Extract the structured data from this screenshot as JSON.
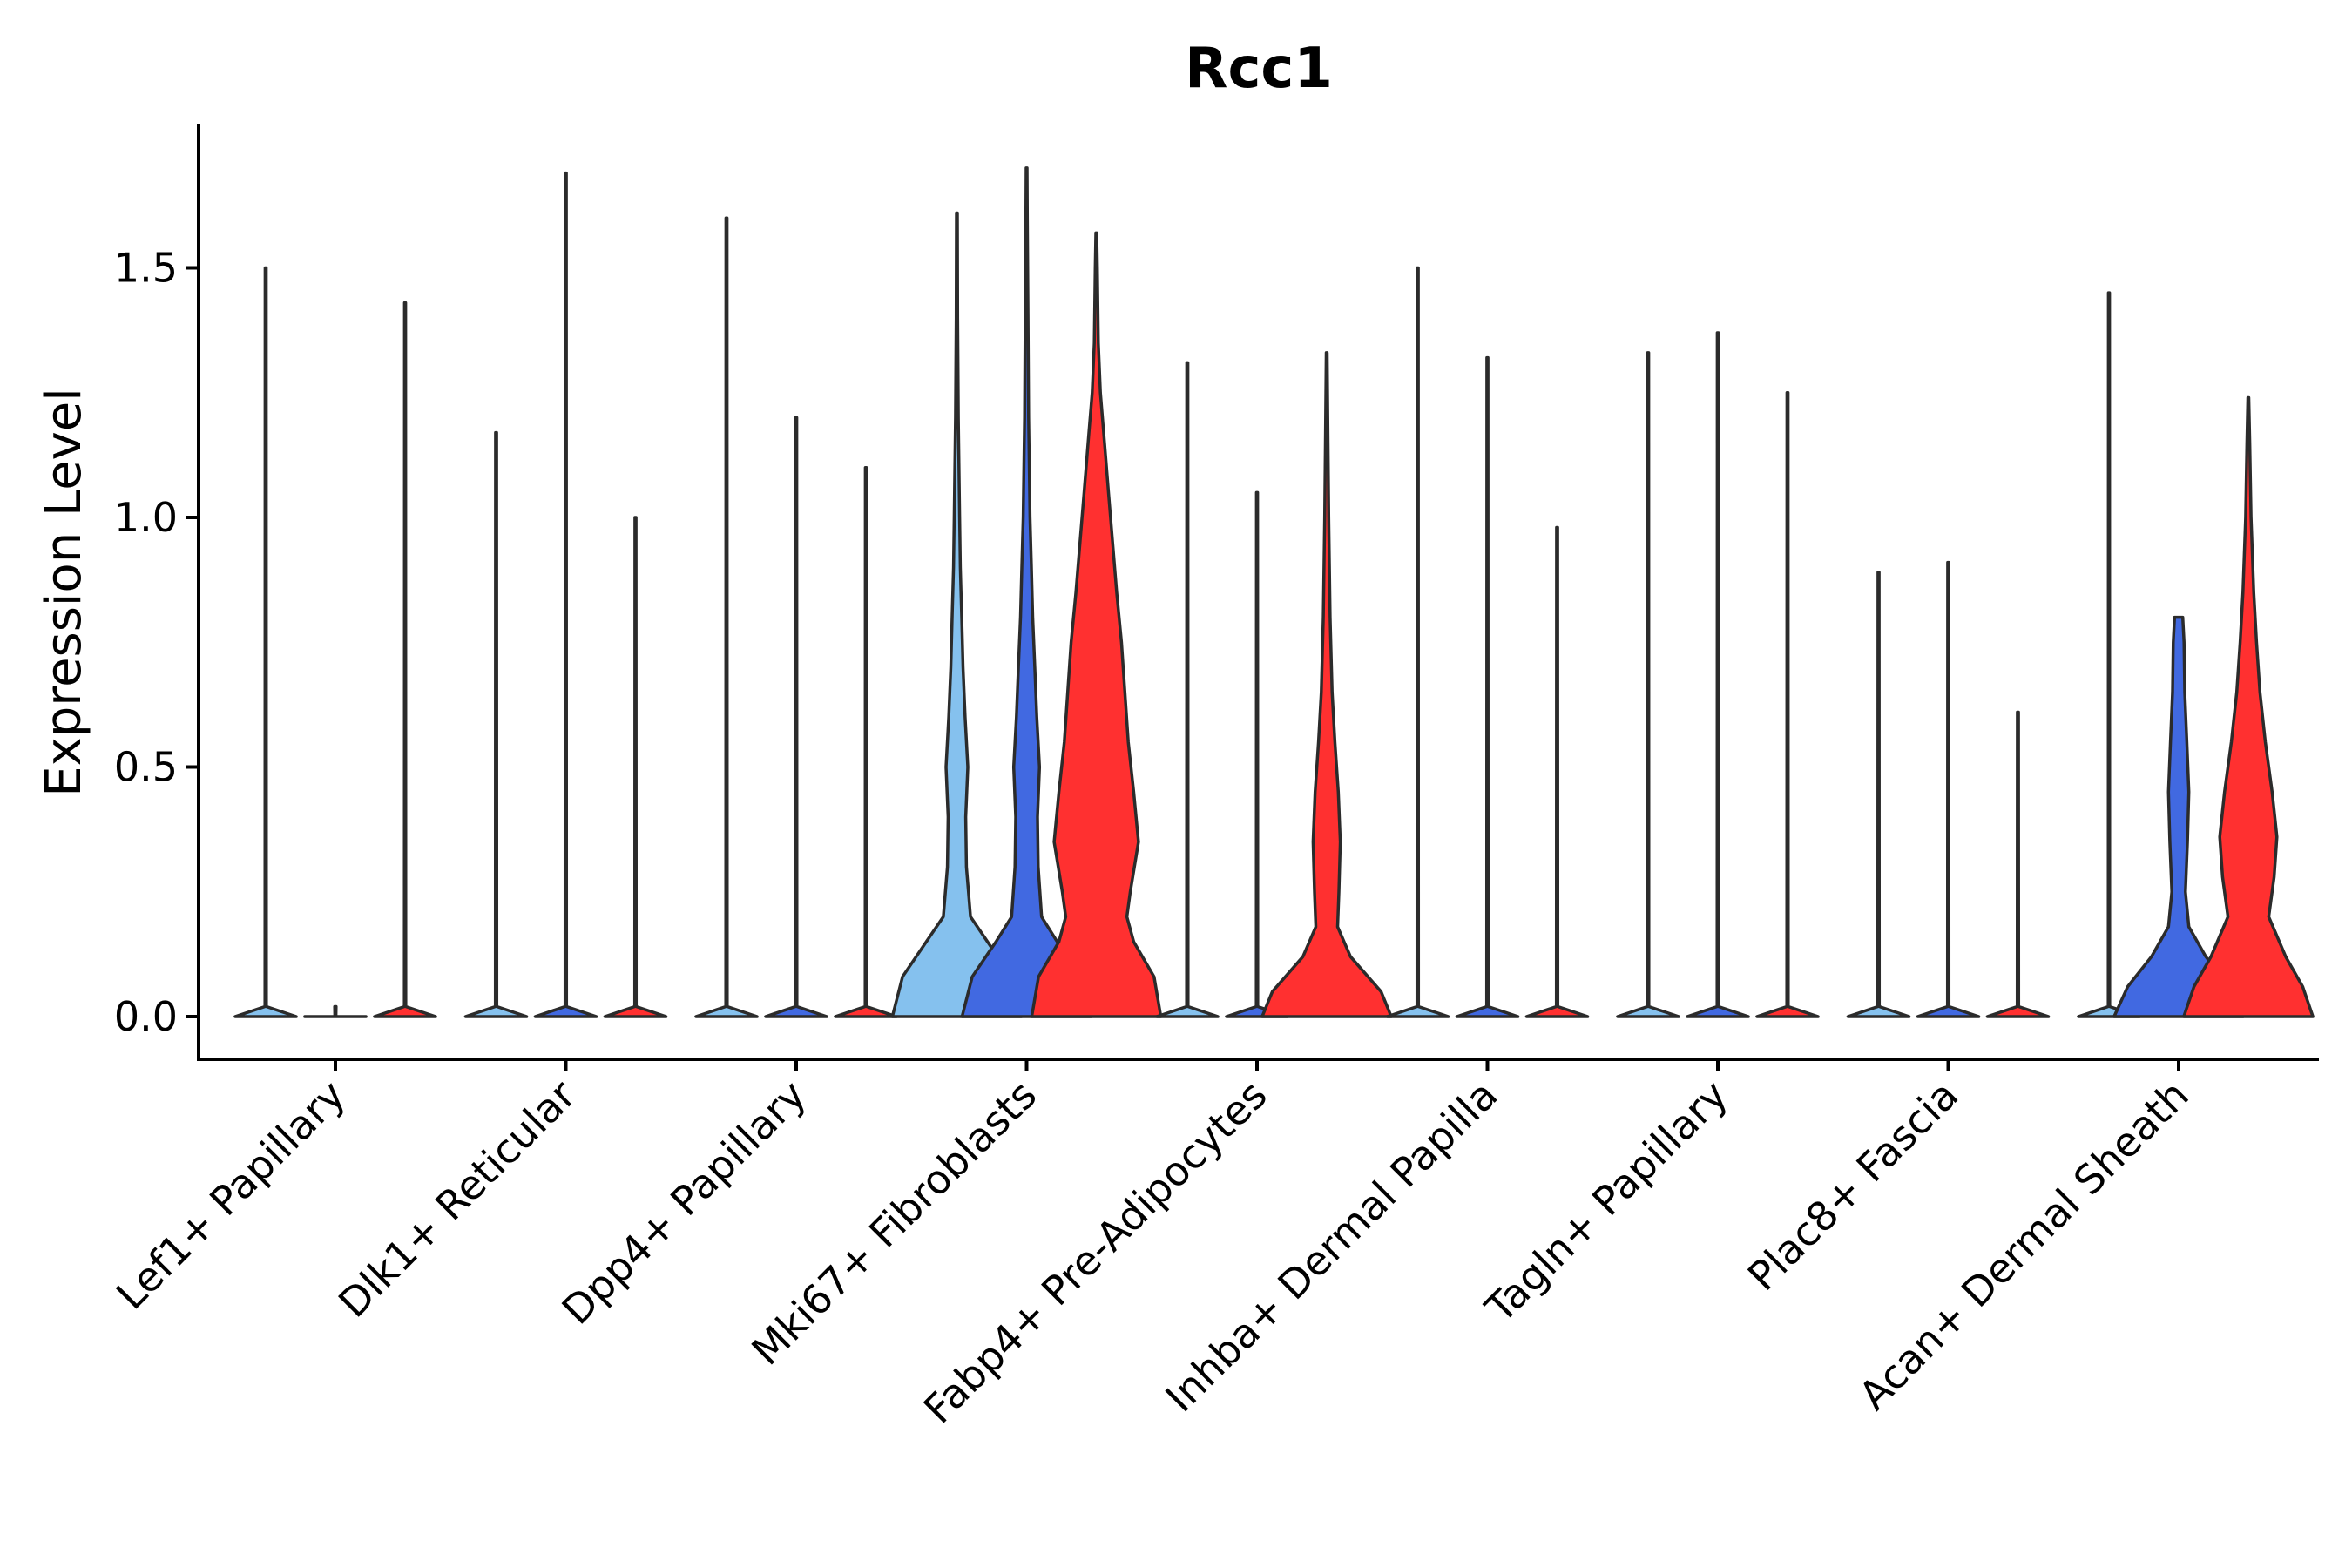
{
  "chart_data": {
    "type": "violin",
    "title": "Rcc1",
    "xlabel": "",
    "ylabel": "Expression Level",
    "ylim": [
      -0.08,
      1.78
    ],
    "yticks": [
      "0.0",
      "0.5",
      "1.0",
      "1.5"
    ],
    "ytick_values": [
      0,
      0.5,
      1.0,
      1.5
    ],
    "categories": [
      "Lef1+ Papillary",
      "Dlk1+ Reticular",
      "Dpp4+ Papillary",
      "Mki67+ Fibroblasts",
      "Fabp4+ Pre-Adipocytes",
      "Inhba+ Dermal Papilla",
      "Tagln+ Papillary",
      "Plac8+ Fascia",
      "Acan+ Dermal Sheath"
    ],
    "groups": [
      {
        "name": "group1",
        "color": "#85C1EE"
      },
      {
        "name": "group2",
        "color": "#4169E1"
      },
      {
        "name": "group3",
        "color": "#FF3030"
      }
    ],
    "violins": [
      {
        "category": 0,
        "group": 0,
        "max": 1.5,
        "profile": []
      },
      {
        "category": 0,
        "group": 1,
        "max": 0.0,
        "profile": []
      },
      {
        "category": 0,
        "group": 2,
        "max": 1.43,
        "profile": []
      },
      {
        "category": 1,
        "group": 0,
        "max": 1.17,
        "profile": []
      },
      {
        "category": 1,
        "group": 1,
        "max": 1.69,
        "profile": []
      },
      {
        "category": 1,
        "group": 2,
        "max": 1.0,
        "profile": []
      },
      {
        "category": 2,
        "group": 0,
        "max": 1.6,
        "profile": []
      },
      {
        "category": 2,
        "group": 1,
        "max": 1.2,
        "profile": []
      },
      {
        "category": 2,
        "group": 2,
        "max": 1.1,
        "profile": []
      },
      {
        "category": 3,
        "group": 0,
        "max": 1.61,
        "profile": [
          [
            0,
            0.95
          ],
          [
            0.08,
            0.8
          ],
          [
            0.15,
            0.45
          ],
          [
            0.2,
            0.2
          ],
          [
            0.3,
            0.14
          ],
          [
            0.4,
            0.13
          ],
          [
            0.5,
            0.16
          ],
          [
            0.6,
            0.12
          ],
          [
            0.7,
            0.09
          ],
          [
            0.8,
            0.07
          ],
          [
            0.9,
            0.05
          ],
          [
            1.0,
            0.04
          ],
          [
            1.2,
            0.02
          ],
          [
            1.4,
            0.01
          ]
        ]
      },
      {
        "category": 3,
        "group": 1,
        "max": 1.7,
        "profile": [
          [
            0,
            0.95
          ],
          [
            0.08,
            0.8
          ],
          [
            0.15,
            0.45
          ],
          [
            0.2,
            0.22
          ],
          [
            0.3,
            0.17
          ],
          [
            0.4,
            0.16
          ],
          [
            0.5,
            0.19
          ],
          [
            0.6,
            0.15
          ],
          [
            0.7,
            0.12
          ],
          [
            0.8,
            0.09
          ],
          [
            0.9,
            0.07
          ],
          [
            1.0,
            0.05
          ],
          [
            1.2,
            0.03
          ],
          [
            1.4,
            0.02
          ],
          [
            1.6,
            0.01
          ]
        ]
      },
      {
        "category": 3,
        "group": 2,
        "max": 1.57,
        "profile": [
          [
            0,
            0.95
          ],
          [
            0.08,
            0.85
          ],
          [
            0.15,
            0.55
          ],
          [
            0.2,
            0.45
          ],
          [
            0.25,
            0.5
          ],
          [
            0.35,
            0.62
          ],
          [
            0.45,
            0.55
          ],
          [
            0.55,
            0.47
          ],
          [
            0.65,
            0.42
          ],
          [
            0.75,
            0.37
          ],
          [
            0.85,
            0.3
          ],
          [
            0.95,
            0.24
          ],
          [
            1.05,
            0.18
          ],
          [
            1.15,
            0.12
          ],
          [
            1.25,
            0.06
          ],
          [
            1.35,
            0.03
          ],
          [
            1.5,
            0.015
          ]
        ]
      },
      {
        "category": 4,
        "group": 0,
        "max": 1.31,
        "profile": []
      },
      {
        "category": 4,
        "group": 1,
        "max": 1.05,
        "profile": []
      },
      {
        "category": 4,
        "group": 2,
        "max": 1.33,
        "profile": [
          [
            0,
            0.95
          ],
          [
            0.05,
            0.8
          ],
          [
            0.12,
            0.35
          ],
          [
            0.18,
            0.16
          ],
          [
            0.25,
            0.18
          ],
          [
            0.35,
            0.2
          ],
          [
            0.45,
            0.17
          ],
          [
            0.55,
            0.12
          ],
          [
            0.65,
            0.08
          ],
          [
            0.8,
            0.05
          ],
          [
            1.0,
            0.03
          ],
          [
            1.2,
            0.015
          ]
        ]
      },
      {
        "category": 5,
        "group": 0,
        "max": 1.5,
        "profile": []
      },
      {
        "category": 5,
        "group": 1,
        "max": 1.32,
        "profile": []
      },
      {
        "category": 5,
        "group": 2,
        "max": 0.98,
        "profile": []
      },
      {
        "category": 6,
        "group": 0,
        "max": 1.33,
        "profile": []
      },
      {
        "category": 6,
        "group": 1,
        "max": 1.37,
        "profile": []
      },
      {
        "category": 6,
        "group": 2,
        "max": 1.25,
        "profile": []
      },
      {
        "category": 7,
        "group": 0,
        "max": 0.89,
        "profile": []
      },
      {
        "category": 7,
        "group": 1,
        "max": 0.91,
        "profile": []
      },
      {
        "category": 7,
        "group": 2,
        "max": 0.61,
        "profile": []
      },
      {
        "category": 8,
        "group": 0,
        "max": 1.45,
        "profile": []
      },
      {
        "category": 8,
        "group": 1,
        "max": 0.8,
        "profile": [
          [
            0,
            0.95
          ],
          [
            0.06,
            0.75
          ],
          [
            0.12,
            0.4
          ],
          [
            0.18,
            0.15
          ],
          [
            0.25,
            0.1
          ],
          [
            0.35,
            0.13
          ],
          [
            0.45,
            0.15
          ],
          [
            0.55,
            0.12
          ],
          [
            0.65,
            0.09
          ],
          [
            0.75,
            0.08
          ],
          [
            0.8,
            0.06
          ]
        ]
      },
      {
        "category": 8,
        "group": 2,
        "max": 1.24,
        "profile": [
          [
            0,
            0.95
          ],
          [
            0.06,
            0.8
          ],
          [
            0.12,
            0.55
          ],
          [
            0.2,
            0.3
          ],
          [
            0.28,
            0.38
          ],
          [
            0.36,
            0.42
          ],
          [
            0.45,
            0.35
          ],
          [
            0.55,
            0.25
          ],
          [
            0.65,
            0.17
          ],
          [
            0.75,
            0.12
          ],
          [
            0.85,
            0.08
          ],
          [
            1.0,
            0.04
          ],
          [
            1.15,
            0.02
          ]
        ]
      }
    ]
  }
}
